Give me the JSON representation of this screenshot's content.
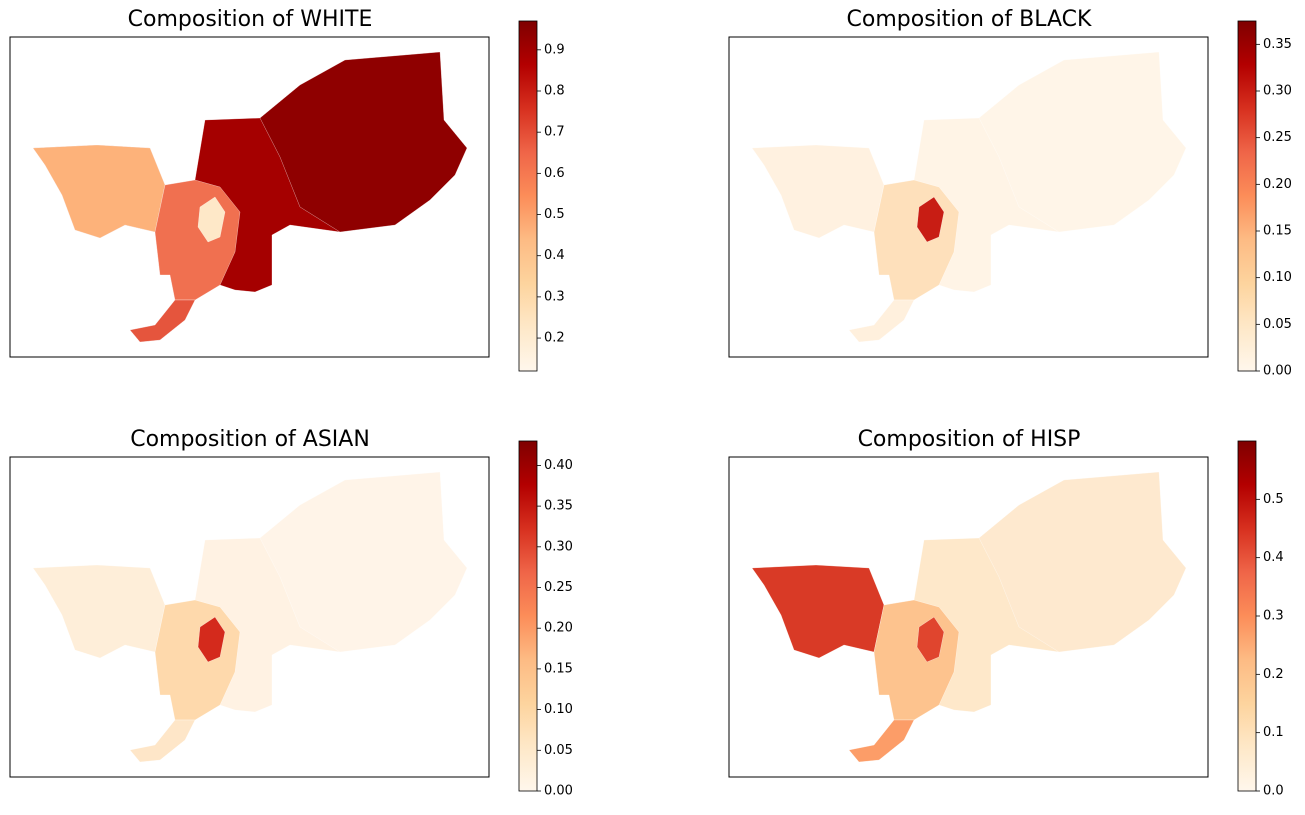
{
  "colormap": [
    "#fff7ec",
    "#fee8c8",
    "#fdd49e",
    "#fdbb84",
    "#fc8d59",
    "#ef6548",
    "#d7301f",
    "#b30000",
    "#7f0000"
  ],
  "chart_data": [
    {
      "type": "map",
      "title": "Composition of WHITE",
      "clim": [
        0.12,
        0.97
      ],
      "ticks": [
        0.2,
        0.3,
        0.4,
        0.5,
        0.6,
        0.7,
        0.8,
        0.9
      ]
    },
    {
      "type": "map",
      "title": "Composition of BLACK",
      "clim": [
        0,
        0.375
      ],
      "ticks": [
        {
          "value": 0,
          "label": "0.00"
        },
        0.05,
        {
          "value": 0.1,
          "label": "0.10"
        },
        0.15,
        {
          "value": 0.2,
          "label": "0.20"
        },
        0.25,
        {
          "value": 0.3,
          "label": "0.30"
        },
        0.35
      ]
    },
    {
      "type": "map",
      "title": "Composition of ASIAN",
      "clim": [
        0,
        0.43
      ],
      "ticks": [
        {
          "value": 0,
          "label": "0.00"
        },
        0.05,
        {
          "value": 0.1,
          "label": "0.10"
        },
        0.15,
        {
          "value": 0.2,
          "label": "0.20"
        },
        0.25,
        {
          "value": 0.3,
          "label": "0.30"
        },
        0.35,
        {
          "value": 0.4,
          "label": "0.40"
        }
      ]
    },
    {
      "type": "map",
      "title": "Composition of HISP",
      "clim": [
        0,
        0.6
      ],
      "ticks": [
        {
          "value": 0,
          "label": "0.0"
        },
        0.1,
        0.2,
        0.3,
        0.4,
        0.5
      ]
    }
  ]
}
